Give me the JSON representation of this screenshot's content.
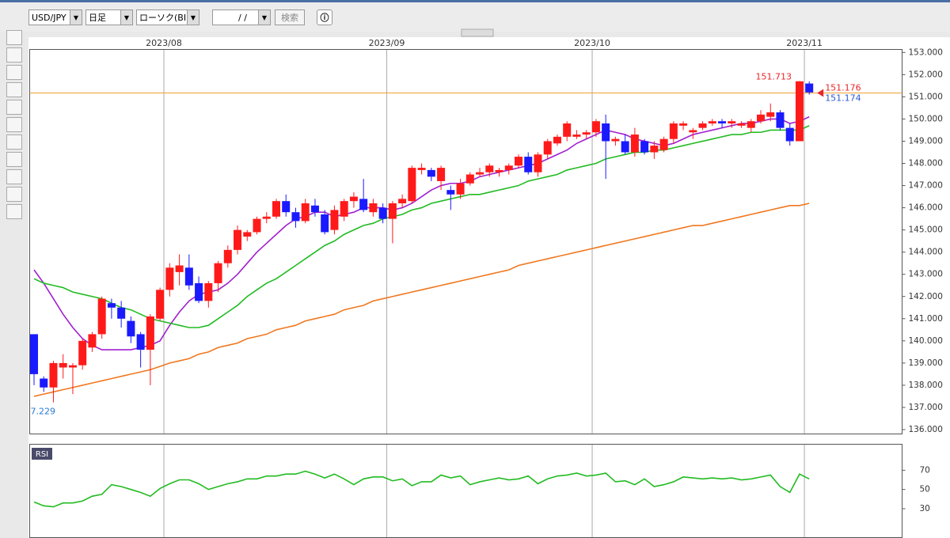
{
  "toolbar": {
    "symbol": "USD/JPY",
    "period": "日足",
    "price_type": "ローソク(BID)",
    "date": "/ /",
    "search": "検索"
  },
  "chart_data": {
    "type": "candlestick",
    "categories": [
      null,
      null,
      null,
      null,
      null,
      null,
      null,
      null,
      null,
      null,
      null,
      null,
      null,
      null,
      null,
      null,
      null,
      null,
      null,
      null,
      null,
      null,
      null,
      null,
      null,
      null,
      null,
      null,
      null,
      null,
      null,
      null,
      null,
      null,
      null,
      null,
      null,
      null,
      null,
      null,
      null,
      null,
      null,
      null,
      null,
      null,
      null,
      null,
      null,
      null,
      null,
      null,
      null,
      null,
      null,
      null,
      null,
      null,
      null,
      null,
      null,
      null,
      null,
      null,
      null,
      null,
      null,
      null,
      null,
      null,
      null,
      null,
      null,
      null,
      null,
      null,
      null,
      null,
      null,
      null,
      null
    ],
    "xticks": [
      {
        "value": 13.4,
        "label": "2023/08"
      },
      {
        "value": 36.4,
        "label": "2023/09"
      },
      {
        "value": 57.6,
        "label": "2023/10"
      },
      {
        "value": 79.5,
        "label": "2023/11"
      }
    ],
    "ylim": [
      136,
      153
    ],
    "yticks": [
      {
        "value": 136,
        "label": "136.000"
      },
      {
        "value": 137,
        "label": "137.000"
      },
      {
        "value": 138,
        "label": "138.000"
      },
      {
        "value": 139,
        "label": "139.000"
      },
      {
        "value": 140,
        "label": "140.000"
      },
      {
        "value": 141,
        "label": "141.000"
      },
      {
        "value": 142,
        "label": "142.000"
      },
      {
        "value": 143,
        "label": "143.000"
      },
      {
        "value": 144,
        "label": "144.000"
      },
      {
        "value": 145,
        "label": "145.000"
      },
      {
        "value": 146,
        "label": "146.000"
      },
      {
        "value": 147,
        "label": "147.000"
      },
      {
        "value": 148,
        "label": "148.000"
      },
      {
        "value": 149,
        "label": "149.000"
      },
      {
        "value": 150,
        "label": "150.000"
      },
      {
        "value": 151,
        "label": "151.000"
      },
      {
        "value": 152,
        "label": "152.000"
      },
      {
        "value": 153,
        "label": "153.000"
      }
    ],
    "up_color": "#ff1a1a",
    "down_color": "#1a1aff",
    "open": [
      140.3,
      138.3,
      137.9,
      138.8,
      138.8,
      138.9,
      139.7,
      140.3,
      141.7,
      141.5,
      140.9,
      140.3,
      139.6,
      141.0,
      142.3,
      143.1,
      143.3,
      142.6,
      141.8,
      142.6,
      143.5,
      144.1,
      144.7,
      144.9,
      145.5,
      145.6,
      146.3,
      145.8,
      145.4,
      146.1,
      145.7,
      145.0,
      145.6,
      146.3,
      146.4,
      145.8,
      146.0,
      145.5,
      146.2,
      146.3,
      147.7,
      147.7,
      147.2,
      146.8,
      146.6,
      147.1,
      147.5,
      147.6,
      147.6,
      147.7,
      147.9,
      148.3,
      147.6,
      148.4,
      148.9,
      149.2,
      149.2,
      149.3,
      149.4,
      149.8,
      149.0,
      149.0,
      148.5,
      149.0,
      148.5,
      148.6,
      149.1,
      149.7,
      149.4,
      149.6,
      149.8,
      149.9,
      149.8,
      149.7,
      149.6,
      149.9,
      150.1,
      150.3,
      149.6,
      149.0,
      151.6
    ],
    "high": [
      140.3,
      138.4,
      139.1,
      139.4,
      139.0,
      140.1,
      140.4,
      142.0,
      141.9,
      141.8,
      141.1,
      140.4,
      141.2,
      142.4,
      143.5,
      143.9,
      143.9,
      142.9,
      142.7,
      143.6,
      144.3,
      145.2,
      145.0,
      145.6,
      145.8,
      146.4,
      146.6,
      146.0,
      146.4,
      146.4,
      145.9,
      146.1,
      146.4,
      146.7,
      147.3,
      146.4,
      146.2,
      146.3,
      146.6,
      147.9,
      148.0,
      147.8,
      147.9,
      147.0,
      147.3,
      147.6,
      147.8,
      148.0,
      147.8,
      148.0,
      148.4,
      148.5,
      148.5,
      149.1,
      149.3,
      149.9,
      149.5,
      149.5,
      150.0,
      150.2,
      149.2,
      149.3,
      149.6,
      149.1,
      149.0,
      149.2,
      149.9,
      149.9,
      149.6,
      149.9,
      150.0,
      150.0,
      150.0,
      149.9,
      150.0,
      150.4,
      150.7,
      150.4,
      149.8,
      151.713,
      151.7
    ],
    "low": [
      138.0,
      137.7,
      137.229,
      138.3,
      137.6,
      138.7,
      139.5,
      140.1,
      141.0,
      140.6,
      139.9,
      138.8,
      138.0,
      140.9,
      142.0,
      142.5,
      142.3,
      141.7,
      141.5,
      142.2,
      143.3,
      143.9,
      144.5,
      144.8,
      145.3,
      145.5,
      145.6,
      145.1,
      145.3,
      145.6,
      144.8,
      144.8,
      145.4,
      146.0,
      145.8,
      145.6,
      145.3,
      144.4,
      146.0,
      146.2,
      147.5,
      147.2,
      146.8,
      145.9,
      146.4,
      147.0,
      147.4,
      147.4,
      147.4,
      147.5,
      147.8,
      147.5,
      147.4,
      148.2,
      148.8,
      149.0,
      149.1,
      149.1,
      149.2,
      147.3,
      148.8,
      148.4,
      148.3,
      148.4,
      148.2,
      148.5,
      148.9,
      149.5,
      149.1,
      149.5,
      149.7,
      149.6,
      149.6,
      149.6,
      149.4,
      149.8,
      149.9,
      149.5,
      148.8,
      149.0,
      151.1
    ],
    "close": [
      138.5,
      137.9,
      139.0,
      139.0,
      138.9,
      140.0,
      140.3,
      141.9,
      141.5,
      141.0,
      140.2,
      139.6,
      141.1,
      142.3,
      143.3,
      143.4,
      142.5,
      141.8,
      142.6,
      143.5,
      144.1,
      145.0,
      144.9,
      145.5,
      145.6,
      146.3,
      145.8,
      145.4,
      146.2,
      145.8,
      144.9,
      145.9,
      146.3,
      146.5,
      145.9,
      146.2,
      145.5,
      146.2,
      146.4,
      147.8,
      147.8,
      147.4,
      147.8,
      146.6,
      147.1,
      147.5,
      147.6,
      147.9,
      147.7,
      147.9,
      148.3,
      147.6,
      148.4,
      149.0,
      149.2,
      149.8,
      149.3,
      149.4,
      149.9,
      149.0,
      149.1,
      148.5,
      149.3,
      148.5,
      148.8,
      149.1,
      149.8,
      149.8,
      149.5,
      149.8,
      149.9,
      149.8,
      149.9,
      149.8,
      149.9,
      150.2,
      150.3,
      149.6,
      149.0,
      151.7,
      151.2
    ],
    "lines": [
      {
        "color": "#a020d0",
        "values": [
          143.2,
          142.6,
          141.9,
          141.2,
          140.6,
          140.1,
          139.8,
          139.6,
          139.6,
          139.6,
          139.6,
          139.7,
          139.8,
          140.0,
          140.7,
          141.3,
          141.8,
          142.1,
          142.2,
          142.3,
          142.6,
          143.0,
          143.5,
          144.0,
          144.4,
          144.8,
          145.2,
          145.5,
          145.6,
          145.8,
          145.8,
          145.6,
          145.7,
          145.8,
          146.0,
          146.0,
          146.0,
          145.9,
          146.0,
          146.2,
          146.5,
          146.8,
          147.0,
          147.1,
          147.1,
          147.2,
          147.4,
          147.5,
          147.6,
          147.7,
          147.8,
          147.9,
          148.0,
          148.2,
          148.4,
          148.6,
          148.9,
          149.1,
          149.3,
          149.5,
          149.4,
          149.3,
          149.1,
          149.0,
          148.9,
          148.8,
          148.9,
          149.1,
          149.3,
          149.4,
          149.5,
          149.6,
          149.7,
          149.8,
          149.8,
          149.9,
          150.0,
          150.0,
          149.8,
          149.9,
          150.1
        ]
      },
      {
        "color": "#22bb22",
        "values": [
          142.8,
          142.6,
          142.5,
          142.4,
          142.2,
          142.1,
          142.0,
          141.9,
          141.7,
          141.5,
          141.4,
          141.2,
          141.0,
          140.9,
          140.8,
          140.7,
          140.6,
          140.6,
          140.7,
          141.0,
          141.3,
          141.6,
          142.0,
          142.3,
          142.6,
          142.8,
          143.1,
          143.4,
          143.7,
          144.0,
          144.3,
          144.5,
          144.8,
          145.0,
          145.2,
          145.3,
          145.5,
          145.6,
          145.7,
          145.9,
          146.0,
          146.2,
          146.3,
          146.4,
          146.5,
          146.6,
          146.6,
          146.7,
          146.8,
          146.9,
          147.0,
          147.2,
          147.3,
          147.4,
          147.5,
          147.7,
          147.8,
          147.9,
          148.0,
          148.2,
          148.3,
          148.4,
          148.5,
          148.5,
          148.6,
          148.6,
          148.7,
          148.8,
          148.9,
          149.0,
          149.1,
          149.2,
          149.3,
          149.3,
          149.4,
          149.4,
          149.5,
          149.5,
          149.5,
          149.5,
          149.7
        ]
      },
      {
        "color": "#f07820",
        "values": [
          137.5,
          137.6,
          137.7,
          137.8,
          137.9,
          138.0,
          138.1,
          138.2,
          138.3,
          138.4,
          138.5,
          138.6,
          138.7,
          138.85,
          139.0,
          139.1,
          139.2,
          139.4,
          139.5,
          139.7,
          139.8,
          139.9,
          140.1,
          140.2,
          140.3,
          140.5,
          140.6,
          140.7,
          140.9,
          141.0,
          141.1,
          141.2,
          141.4,
          141.5,
          141.6,
          141.8,
          141.9,
          142.0,
          142.1,
          142.2,
          142.3,
          142.4,
          142.5,
          142.6,
          142.7,
          142.8,
          142.9,
          143.0,
          143.1,
          143.2,
          143.4,
          143.5,
          143.6,
          143.7,
          143.8,
          143.9,
          144.0,
          144.1,
          144.2,
          144.3,
          144.4,
          144.5,
          144.6,
          144.7,
          144.8,
          144.9,
          145.0,
          145.1,
          145.2,
          145.2,
          145.3,
          145.4,
          145.5,
          145.6,
          145.7,
          145.8,
          145.9,
          146.0,
          146.1,
          146.1,
          146.2
        ]
      }
    ],
    "price_line": {
      "value": 151.176,
      "color": "#f0a030"
    },
    "annotations": [
      {
        "value": 151.713,
        "color": "#e8262b"
      },
      {
        "value": 151.176,
        "color": "#e8262b"
      },
      {
        "value": 151.174,
        "color": "#2a5ad8"
      }
    ],
    "low_label": "7.229",
    "rsi": {
      "title": "RSI",
      "color": "#22bb22",
      "ylim": [
        0,
        97
      ],
      "yticks": [
        30,
        50,
        70
      ],
      "values": [
        37,
        33,
        32,
        36,
        36,
        38,
        43,
        45,
        55,
        53,
        50,
        47,
        43,
        51,
        56,
        60,
        60,
        56,
        50,
        53,
        56,
        58,
        61,
        61,
        64,
        64,
        66,
        66,
        69,
        66,
        62,
        66,
        61,
        55,
        61,
        63,
        63,
        59,
        61,
        54,
        58,
        58,
        65,
        62,
        64,
        55,
        58,
        60,
        62,
        60,
        61,
        64,
        56,
        61,
        64,
        65,
        67,
        64,
        65,
        67,
        58,
        59,
        55,
        61,
        53,
        55,
        58,
        63,
        62,
        61,
        62,
        61,
        62,
        60,
        61,
        63,
        65,
        53,
        47,
        66,
        61
      ]
    }
  }
}
